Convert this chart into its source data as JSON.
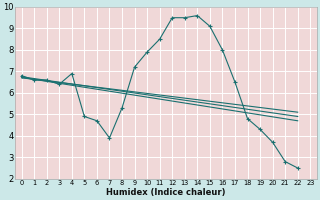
{
  "xlabel": "Humidex (Indice chaleur)",
  "bg_color": "#cce8e8",
  "plot_bg_color": "#f0d8d8",
  "grid_color": "#ffffff",
  "line_color": "#1a7070",
  "xlim": [
    -0.5,
    23.5
  ],
  "ylim": [
    2,
    10
  ],
  "yticks": [
    2,
    3,
    4,
    5,
    6,
    7,
    8,
    9,
    10
  ],
  "xticks": [
    0,
    1,
    2,
    3,
    4,
    5,
    6,
    7,
    8,
    9,
    10,
    11,
    12,
    13,
    14,
    15,
    16,
    17,
    18,
    19,
    20,
    21,
    22,
    23
  ],
  "line1_x": [
    0,
    1,
    2,
    3,
    4,
    5,
    6,
    7,
    8,
    9,
    10,
    11,
    12,
    13,
    14,
    15,
    16,
    17,
    18,
    19,
    20,
    21,
    22
  ],
  "line1_y": [
    6.8,
    6.6,
    6.6,
    6.4,
    6.9,
    4.9,
    4.7,
    3.9,
    5.3,
    7.2,
    7.9,
    8.5,
    9.5,
    9.5,
    9.6,
    9.1,
    8.0,
    6.5,
    4.8,
    4.3,
    3.7,
    2.8,
    2.5
  ],
  "line2_x": [
    0,
    22
  ],
  "line2_y": [
    6.75,
    4.9
  ],
  "line3_x": [
    0,
    22
  ],
  "line3_y": [
    6.7,
    5.1
  ],
  "line4_x": [
    0,
    22
  ],
  "line4_y": [
    6.72,
    4.7
  ]
}
